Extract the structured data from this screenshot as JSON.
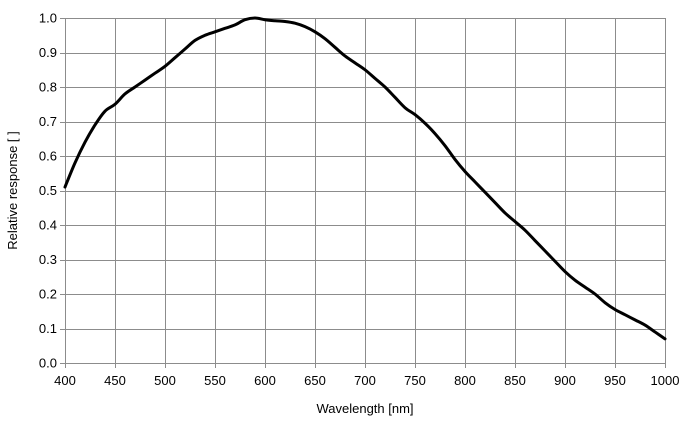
{
  "chart_data": {
    "type": "line",
    "title": "",
    "xlabel": "Wavelength [nm]",
    "ylabel": "Relative response [ ]",
    "xlim": [
      400,
      1000
    ],
    "ylim": [
      0.0,
      1.0
    ],
    "x_ticks": [
      400,
      450,
      500,
      550,
      600,
      650,
      700,
      750,
      800,
      850,
      900,
      950,
      1000
    ],
    "y_ticks": [
      "0.0",
      "0.1",
      "0.2",
      "0.3",
      "0.4",
      "0.5",
      "0.6",
      "0.7",
      "0.8",
      "0.9",
      "1.0"
    ],
    "grid": true,
    "legend": "none",
    "line_color": "#000000",
    "grid_color": "#8c8c8c",
    "series": [
      {
        "x": [
          400,
          410,
          420,
          430,
          440,
          450,
          460,
          470,
          480,
          490,
          500,
          510,
          520,
          530,
          540,
          550,
          560,
          570,
          580,
          590,
          600,
          610,
          620,
          630,
          640,
          650,
          660,
          670,
          680,
          690,
          700,
          710,
          720,
          730,
          740,
          750,
          760,
          770,
          780,
          790,
          800,
          810,
          820,
          830,
          840,
          850,
          860,
          870,
          880,
          890,
          900,
          910,
          920,
          930,
          940,
          950,
          960,
          970,
          980,
          990,
          1000
        ],
        "y": [
          0.51,
          0.58,
          0.64,
          0.69,
          0.73,
          0.75,
          0.78,
          0.8,
          0.82,
          0.84,
          0.86,
          0.885,
          0.91,
          0.935,
          0.95,
          0.96,
          0.97,
          0.98,
          0.995,
          1.0,
          0.995,
          0.992,
          0.99,
          0.985,
          0.975,
          0.96,
          0.94,
          0.915,
          0.89,
          0.87,
          0.85,
          0.825,
          0.8,
          0.77,
          0.74,
          0.72,
          0.695,
          0.665,
          0.63,
          0.59,
          0.555,
          0.525,
          0.495,
          0.465,
          0.435,
          0.41,
          0.385,
          0.355,
          0.325,
          0.295,
          0.265,
          0.24,
          0.22,
          0.2,
          0.175,
          0.155,
          0.14,
          0.125,
          0.11,
          0.09,
          0.07
        ]
      }
    ]
  }
}
